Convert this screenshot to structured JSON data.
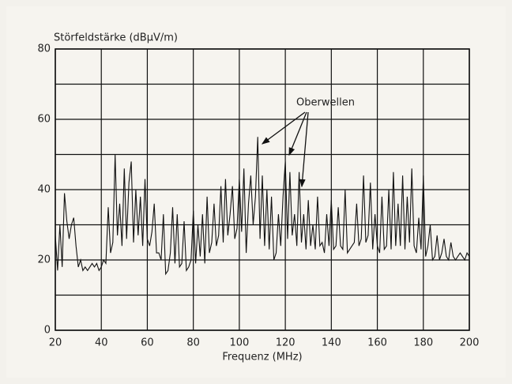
{
  "chart_data": {
    "type": "line",
    "ylabel": "Störfeldstärke (dBµV/m)",
    "xlabel": "Frequenz (MHz)",
    "annotation": "Oberwellen",
    "x": [
      20,
      21,
      22,
      23,
      24,
      25,
      26,
      27,
      28,
      29,
      30,
      31,
      32,
      33,
      34,
      35,
      36,
      37,
      38,
      39,
      40,
      41,
      42,
      43,
      44,
      45,
      46,
      47,
      48,
      49,
      50,
      51,
      52,
      53,
      54,
      55,
      56,
      57,
      58,
      59,
      60,
      61,
      62,
      63,
      64,
      65,
      66,
      67,
      68,
      69,
      70,
      71,
      72,
      73,
      74,
      75,
      76,
      77,
      78,
      79,
      80,
      81,
      82,
      83,
      84,
      85,
      86,
      87,
      88,
      89,
      90,
      91,
      92,
      93,
      94,
      95,
      96,
      97,
      98,
      99,
      100,
      101,
      102,
      103,
      104,
      105,
      106,
      107,
      108,
      109,
      110,
      111,
      112,
      113,
      114,
      115,
      116,
      117,
      118,
      119,
      120,
      121,
      122,
      123,
      124,
      125,
      126,
      127,
      128,
      129,
      130,
      131,
      132,
      133,
      134,
      135,
      136,
      137,
      138,
      139,
      140,
      141,
      142,
      143,
      144,
      145,
      146,
      147,
      148,
      149,
      150,
      151,
      152,
      153,
      154,
      155,
      156,
      157,
      158,
      159,
      160,
      161,
      162,
      163,
      164,
      165,
      166,
      167,
      168,
      169,
      170,
      171,
      172,
      173,
      174,
      175,
      176,
      177,
      178,
      179,
      180,
      181,
      182,
      183,
      184,
      185,
      186,
      187,
      188,
      189,
      190,
      191,
      192,
      193,
      194,
      195,
      196,
      197,
      198,
      199,
      200
    ],
    "series": [
      {
        "color": "#111111",
        "values": [
          27,
          17,
          30,
          18,
          39,
          31,
          26,
          30,
          32,
          24,
          18,
          20,
          17,
          18,
          17,
          18,
          19,
          18,
          19,
          17,
          18,
          20,
          19,
          35,
          22,
          25,
          50,
          27,
          36,
          24,
          46,
          26,
          42,
          48,
          25,
          40,
          27,
          38,
          24,
          43,
          26,
          24,
          28,
          36,
          22,
          22,
          20,
          33,
          16,
          17,
          22,
          35,
          19,
          33,
          18,
          19,
          31,
          17,
          18,
          20,
          34,
          19,
          30,
          21,
          33,
          19,
          38,
          22,
          25,
          36,
          24,
          27,
          41,
          25,
          43,
          27,
          33,
          41,
          26,
          29,
          43,
          28,
          46,
          22,
          36,
          44,
          30,
          38,
          55,
          26,
          44,
          24,
          40,
          23,
          38,
          20,
          22,
          33,
          24,
          38,
          48,
          26,
          45,
          27,
          33,
          24,
          45,
          25,
          33,
          23,
          37,
          24,
          30,
          23,
          38,
          24,
          25,
          22,
          33,
          24,
          37,
          23,
          24,
          35,
          24,
          23,
          40,
          22,
          23,
          24,
          25,
          36,
          24,
          26,
          44,
          25,
          27,
          42,
          23,
          33,
          24,
          22,
          38,
          23,
          24,
          40,
          23,
          45,
          24,
          36,
          24,
          44,
          23,
          38,
          25,
          46,
          24,
          22,
          32,
          23,
          44,
          21,
          24,
          30,
          20,
          21,
          27,
          20,
          22,
          26,
          21,
          20,
          25,
          21,
          20,
          21,
          22,
          21,
          20,
          22,
          21
        ]
      }
    ],
    "xlim": [
      20,
      200
    ],
    "ylim": [
      0,
      80
    ],
    "xticks": [
      20,
      40,
      60,
      80,
      100,
      120,
      140,
      160,
      180,
      200
    ],
    "yticks": [
      0,
      20,
      40,
      60,
      80
    ],
    "yminor": [
      10,
      30,
      50,
      70
    ],
    "grid": true
  }
}
